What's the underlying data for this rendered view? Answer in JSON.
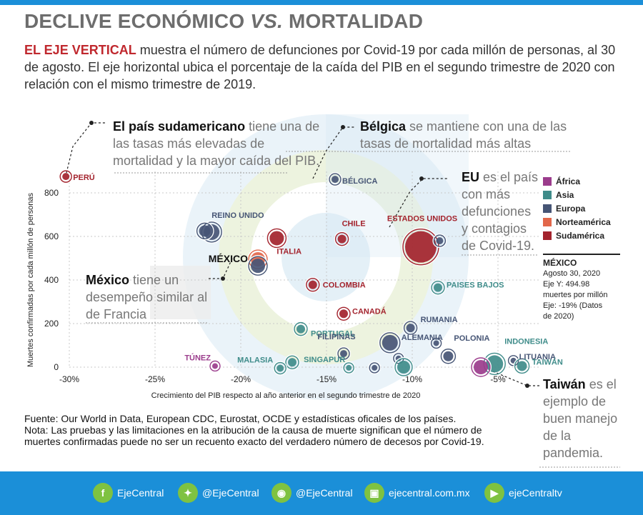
{
  "header": {
    "title_a": "DECLIVE ECONÓMICO ",
    "title_vs": "VS.",
    "title_b": " MORTALIDAD",
    "intro_bold": "EL EJE VERTICAL",
    "intro_rest": " muestra el número de defunciones por Covid-19 por cada millón de personas, al 30 de agosto. El eje horizontal ubica el porcentaje de la caída del PIB en el segundo trimestre de 2020 con relación con el mismo trimestre de 2019."
  },
  "annotations": {
    "peru_bold": "El país sudamericano",
    "peru_rest": " tiene una de las tasas más elevadas de mortalidad y la mayor caída del PIB.",
    "belgica_bold": "Bélgica",
    "belgica_rest": " se mantiene con una de las tasas de mortalidad más altas",
    "eu_bold": "EU",
    "eu_rest": " es el país con más defunciones y contagios de Covid-19.",
    "mexico_bold": "México",
    "mexico_rest": " tiene un desempeño similar al de Francia",
    "taiwan_bold": "Taiwán",
    "taiwan_rest": " es el ejemplo de buen manejo de la pandemia."
  },
  "legend": [
    {
      "label": "África",
      "color": "#9b3c8c"
    },
    {
      "label": "Asia",
      "color": "#3f8c8a"
    },
    {
      "label": "Europa",
      "color": "#465575"
    },
    {
      "label": "Norteamérica",
      "color": "#e2674a"
    },
    {
      "label": "Sudamérica",
      "color": "#a3232d"
    }
  ],
  "mexico_box": {
    "title": "MÉXICO",
    "lines": [
      "Agosto 30, 2020",
      "Eje Y: 494.98",
      "muertes por millón",
      "Eje: -19% (Datos",
      "de 2020)"
    ]
  },
  "chart_data": {
    "type": "scatter",
    "xlabel": "Crecimiento del PIB respecto al año anterior en el segundo trimestre de 2020",
    "ylabel": "Muertes confirmadas por cada millón de personas",
    "xlim": [
      -30,
      -3
    ],
    "ylim": [
      0,
      900
    ],
    "xticks": [
      -30,
      -25,
      -20,
      -15,
      -10,
      -5
    ],
    "xtick_labels": [
      "-30%",
      "-25%",
      "-20%",
      "-15%",
      "-10%",
      "-5%"
    ],
    "yticks": [
      0,
      200,
      400,
      600,
      800
    ],
    "grid": true,
    "points": [
      {
        "label": "PERÚ",
        "region": "Sudamérica",
        "x": -30.2,
        "y": 875,
        "size": 5
      },
      {
        "label": "BÉLGICA",
        "region": "Europa",
        "x": -14.5,
        "y": 862,
        "size": 5
      },
      {
        "label": "REINO UNIDO",
        "region": "Europa",
        "x": -21.7,
        "y": 620,
        "size": 11
      },
      {
        "label": "",
        "region": "Europa",
        "x": -22.1,
        "y": 625,
        "size": 8
      },
      {
        "label": "ITALIA",
        "region": "Sudamérica",
        "x": -17.9,
        "y": 592,
        "size": 10
      },
      {
        "label": "CHILE",
        "region": "Sudamérica",
        "x": -14.1,
        "y": 588,
        "size": 6
      },
      {
        "label": "ESTADOS UNIDOS",
        "region": "Sudamérica",
        "x": -9.5,
        "y": 552,
        "size": 22
      },
      {
        "label": "",
        "region": "Europa",
        "x": -8.4,
        "y": 580,
        "size": 5
      },
      {
        "label": "MÉXICO",
        "region": "Norteamérica",
        "x": -19.0,
        "y": 495,
        "size": 10
      },
      {
        "label": "",
        "region": "Europa",
        "x": -19.0,
        "y": 465,
        "size": 10
      },
      {
        "label": "COLOMBIA",
        "region": "Sudamérica",
        "x": -15.8,
        "y": 378,
        "size": 6
      },
      {
        "label": "PAISES BAJOS",
        "region": "Asia",
        "x": -8.5,
        "y": 365,
        "size": 6
      },
      {
        "label": "CANADÁ",
        "region": "Sudamérica",
        "x": -14.0,
        "y": 245,
        "size": 6
      },
      {
        "label": "RUMANIA",
        "region": "Europa",
        "x": -10.1,
        "y": 180,
        "size": 6
      },
      {
        "label": "PORTUGAL",
        "region": "Asia",
        "x": -16.5,
        "y": 175,
        "size": 6
      },
      {
        "label": "ALEMANIA",
        "region": "Europa",
        "x": -11.3,
        "y": 112,
        "size": 11
      },
      {
        "label": "POLONIA",
        "region": "Europa",
        "x": -7.9,
        "y": 50,
        "size": 7
      },
      {
        "label": "FILIPINAS",
        "region": "Europa",
        "x": -14.0,
        "y": 62,
        "size": 5
      },
      {
        "label": "",
        "region": "Asia",
        "x": -17.0,
        "y": 22,
        "size": 6
      },
      {
        "label": "MALASIA",
        "region": "Asia",
        "x": -17.7,
        "y": -5,
        "size": 5
      },
      {
        "label": "SINGAPUR",
        "region": "Asia",
        "x": -13.7,
        "y": -3,
        "size": 4
      },
      {
        "label": "",
        "region": "Europa",
        "x": -12.2,
        "y": -3,
        "size": 4
      },
      {
        "label": "",
        "region": "Europa",
        "x": -10.8,
        "y": 40,
        "size": 4
      },
      {
        "label": "",
        "region": "Asia",
        "x": -10.5,
        "y": 0,
        "size": 9
      },
      {
        "label": "",
        "region": "Europa",
        "x": -8.6,
        "y": 110,
        "size": 4
      },
      {
        "label": "INDONESIA",
        "region": "Asia",
        "x": -5.2,
        "y": 15,
        "size": 12
      },
      {
        "label": "",
        "region": "África",
        "x": -6.0,
        "y": 0,
        "size": 10
      },
      {
        "label": "LITUANIA",
        "region": "Europa",
        "x": -4.1,
        "y": 30,
        "size": 4
      },
      {
        "label": "TAIWÁN",
        "region": "Asia",
        "x": -3.6,
        "y": 5,
        "size": 7
      },
      {
        "label": "TÚNEZ",
        "region": "África",
        "x": -21.5,
        "y": 5,
        "size": 4
      }
    ]
  },
  "source": {
    "fuente": "Fuente: Our World in Data, European CDC, Eurostat, OCDE y estadísticas oficales de los países.",
    "nota": "Nota: Las pruebas y las limitaciones en la atribución de la causa de muerte significan que el número de muertes confirmadas puede no ser un recuento exacto del verdadero número de decesos por Covid-19."
  },
  "footer": {
    "facebook": "EjeCentral",
    "twitter": "@EjeCentral",
    "location": "@EjeCentral",
    "web": "ejecentral.com.mx",
    "youtube": "ejeCentraltv"
  }
}
